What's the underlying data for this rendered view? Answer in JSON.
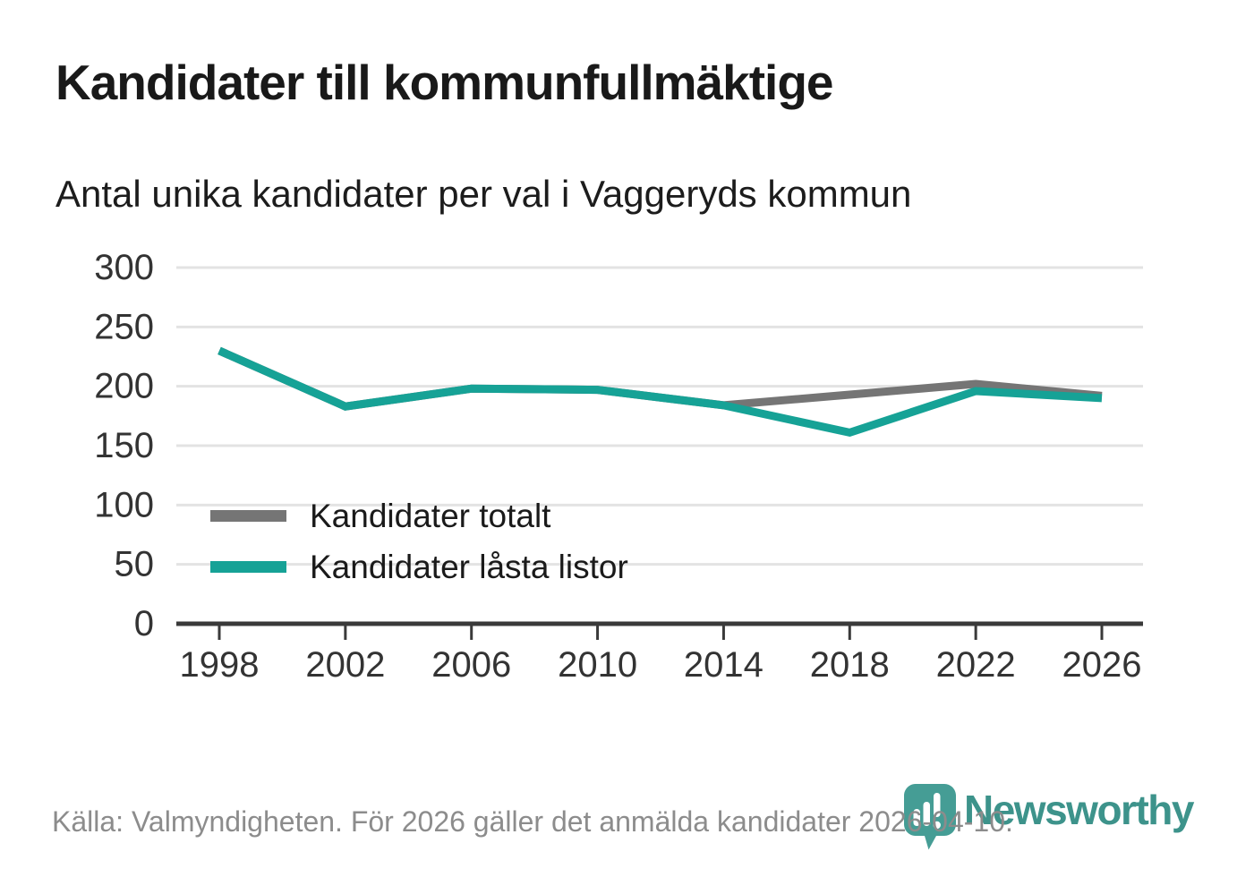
{
  "header": {
    "title": "Kandidater till kommunfullmäktige",
    "subtitle": "Antal unika kandidater per val i Vaggeryds kommun"
  },
  "chart_data": {
    "type": "line",
    "categories": [
      "1998",
      "2002",
      "2006",
      "2010",
      "2014",
      "2018",
      "2022",
      "2026"
    ],
    "series": [
      {
        "name": "Kandidater totalt",
        "color": "#757575",
        "values": [
          230,
          183,
          198,
          197,
          184,
          193,
          202,
          192
        ]
      },
      {
        "name": "Kandidater låsta listor",
        "color": "#16a296",
        "values": [
          230,
          183,
          198,
          197,
          184,
          161,
          196,
          190
        ]
      }
    ],
    "title": "Kandidater till kommunfullmäktige",
    "subtitle": "Antal unika kandidater per val i Vaggeryds kommun",
    "xlabel": "",
    "ylabel": "",
    "ylim": [
      0,
      300
    ],
    "y_ticks": [
      0,
      50,
      100,
      150,
      200,
      250,
      300
    ],
    "grid": "horizontal",
    "legend_position": "inside-bottom-left"
  },
  "footer": {
    "source": "Källa: Valmyndigheten. För 2026 gäller det anmälda kandidater 2026-04-10.",
    "brand": "Newsworthy"
  },
  "colors": {
    "teal_series": "#16a296",
    "gray_series": "#757575",
    "logo_teal": "#459d95",
    "wordmark_teal": "#3d938b",
    "axis": "#3a3a3a",
    "grid": "#e3e3e3",
    "axis_text": "#333333",
    "title_text": "#191919",
    "muted_text": "#8c8c8c"
  },
  "icons": {
    "logo_pin": "newsworthy-pin-icon"
  }
}
